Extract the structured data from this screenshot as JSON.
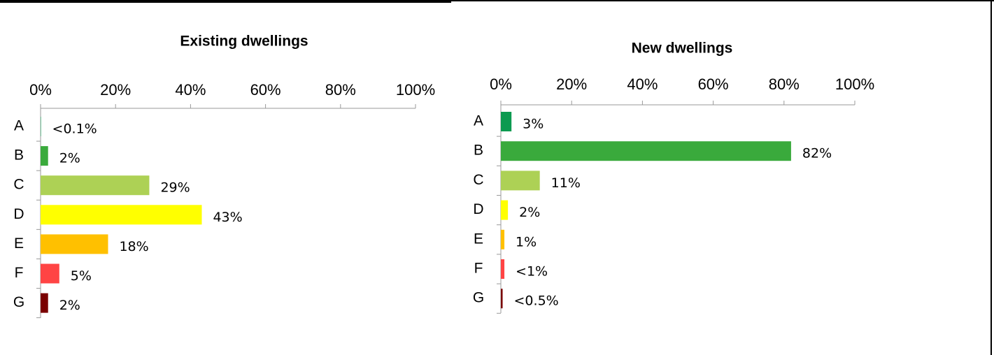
{
  "chart_data": [
    {
      "type": "hbar",
      "title": "Existing dwellings",
      "categories": [
        "A",
        "B",
        "C",
        "D",
        "E",
        "F",
        "G"
      ],
      "values": [
        0.1,
        2,
        29,
        43,
        18,
        5,
        2
      ],
      "value_labels": [
        "<0.1%",
        "2%",
        "29%",
        "43%",
        "18%",
        "5%",
        "2%"
      ],
      "colors": [
        "#0c9a50",
        "#3aaa3c",
        "#add155",
        "#ffff00",
        "#ffc000",
        "#ff4444",
        "#7a0000"
      ],
      "xlim": [
        0,
        100
      ],
      "xticks": [
        {
          "value": 0,
          "label": "0%"
        },
        {
          "value": 20,
          "label": "20%"
        },
        {
          "value": 40,
          "label": "40%"
        },
        {
          "value": 60,
          "label": "60%"
        },
        {
          "value": 80,
          "label": "80%"
        },
        {
          "value": 100,
          "label": "100%"
        }
      ]
    },
    {
      "type": "hbar",
      "title": "New dwellings",
      "categories": [
        "A",
        "B",
        "C",
        "D",
        "E",
        "F",
        "G"
      ],
      "values": [
        3,
        82,
        11,
        2,
        1,
        1,
        0.5
      ],
      "value_labels": [
        "3%",
        "82%",
        "11%",
        "2%",
        "1%",
        "<1%",
        "<0.5%"
      ],
      "colors": [
        "#0c9a50",
        "#3aaa3c",
        "#add155",
        "#ffff00",
        "#ffc000",
        "#ff4444",
        "#7a0000"
      ],
      "xlim": [
        0,
        100
      ],
      "xticks": [
        {
          "value": 0,
          "label": "0%"
        },
        {
          "value": 20,
          "label": "20%"
        },
        {
          "value": 40,
          "label": "40%"
        },
        {
          "value": 60,
          "label": "60%"
        },
        {
          "value": 80,
          "label": "80%"
        },
        {
          "value": 100,
          "label": "100%"
        }
      ]
    }
  ]
}
